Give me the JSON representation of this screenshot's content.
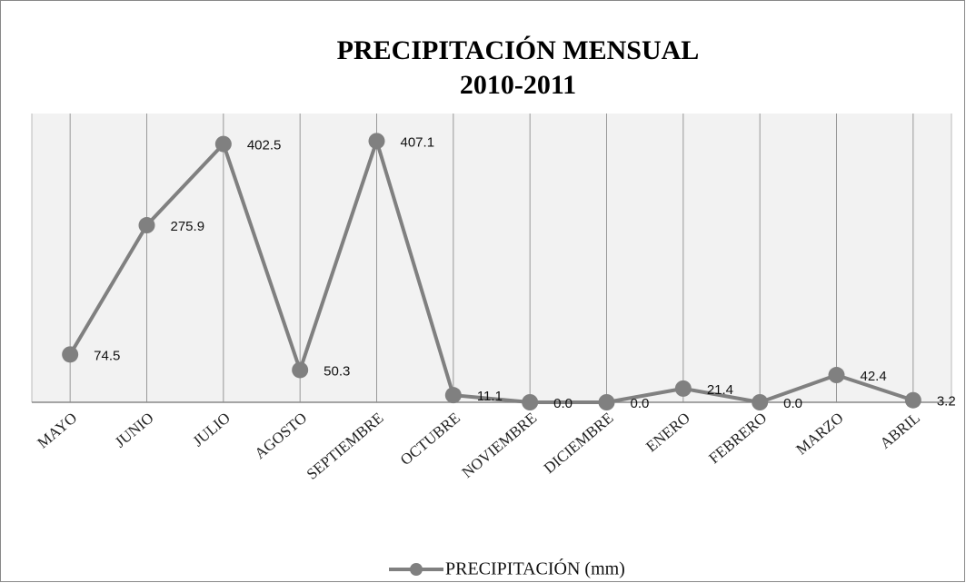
{
  "chart_data": {
    "type": "line",
    "title": "PRECIPITACIÓN MENSUAL",
    "subtitle": "2010-2011",
    "categories": [
      "MAYO",
      "JUNIO",
      "JULIO",
      "AGOSTO",
      "SEPTIEMBRE",
      "OCTUBRE",
      "NOVIEMBRE",
      "DICIEMBRE",
      "ENERO",
      "FEBRERO",
      "MARZO",
      "ABRIL"
    ],
    "series": [
      {
        "name": "PRECIPITACIÓN (mm)",
        "color": "#808080",
        "values": [
          74.5,
          275.9,
          402.5,
          50.3,
          407.1,
          11.1,
          0.0,
          0.0,
          21.4,
          0.0,
          42.4,
          3.2
        ],
        "value_labels": [
          "74.5",
          "275.9",
          "402.5",
          "50.3",
          "407.1",
          "11.1",
          "0.0",
          "0.0",
          "21.4",
          "0.0",
          "42.4",
          "3.2"
        ]
      }
    ],
    "ylim": [
      0,
      450
    ],
    "grid": true,
    "legend": "bottom"
  }
}
